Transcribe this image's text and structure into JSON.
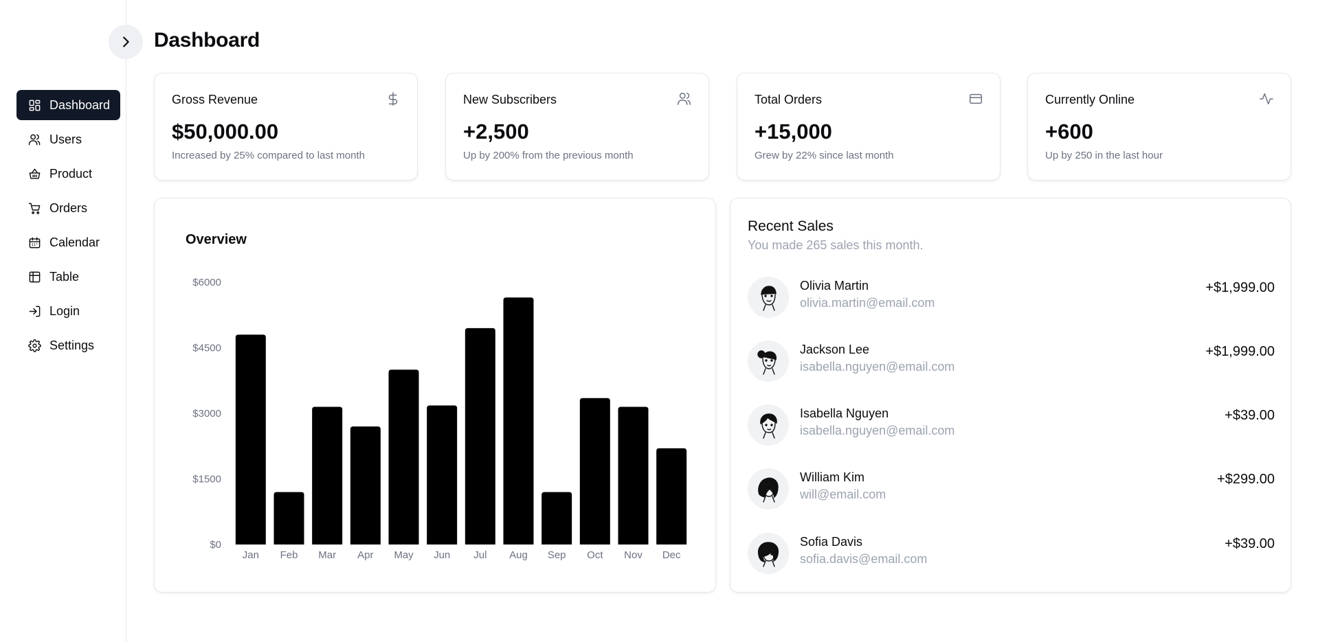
{
  "page": {
    "title": "Dashboard"
  },
  "sidebar": {
    "items": [
      {
        "label": "Dashboard",
        "icon": "dashboard-icon",
        "active": true
      },
      {
        "label": "Users",
        "icon": "users-icon"
      },
      {
        "label": "Product",
        "icon": "basket-icon"
      },
      {
        "label": "Orders",
        "icon": "cart-icon"
      },
      {
        "label": "Calendar",
        "icon": "calendar-icon"
      },
      {
        "label": "Table",
        "icon": "table-icon"
      },
      {
        "label": "Login",
        "icon": "login-icon"
      },
      {
        "label": "Settings",
        "icon": "gear-icon"
      }
    ]
  },
  "stats": [
    {
      "label": "Gross Revenue",
      "value": "$50,000.00",
      "sub": "Increased by 25% compared to last month",
      "icon": "dollar-icon"
    },
    {
      "label": "New Subscribers",
      "value": "+2,500",
      "sub": "Up by 200% from the previous month",
      "icon": "users-icon"
    },
    {
      "label": "Total Orders",
      "value": "+15,000",
      "sub": "Grew by 22% since last month",
      "icon": "credit-card-icon"
    },
    {
      "label": "Currently Online",
      "value": "+600",
      "sub": "Up by 250 in the last hour",
      "icon": "activity-icon"
    }
  ],
  "overview": {
    "title": "Overview"
  },
  "chart_data": {
    "type": "bar",
    "title": "Overview",
    "categories": [
      "Jan",
      "Feb",
      "Mar",
      "Apr",
      "May",
      "Jun",
      "Jul",
      "Aug",
      "Sep",
      "Oct",
      "Nov",
      "Dec"
    ],
    "values": [
      4800,
      1200,
      3150,
      2700,
      4000,
      3180,
      4950,
      5650,
      1200,
      3350,
      3150,
      2200
    ],
    "y_ticks": [
      "$0",
      "$1500",
      "$3000",
      "$4500",
      "$6000"
    ],
    "ylim": [
      0,
      6000
    ],
    "bar_color": "#000000",
    "grid": false
  },
  "recent_sales": {
    "title": "Recent Sales",
    "subtitle": "You made 265 sales this month.",
    "rows": [
      {
        "name": "Olivia Martin",
        "email": "olivia.martin@email.com",
        "amount": "+$1,999.00"
      },
      {
        "name": "Jackson Lee",
        "email": "isabella.nguyen@email.com",
        "amount": "+$1,999.00"
      },
      {
        "name": "Isabella Nguyen",
        "email": "isabella.nguyen@email.com",
        "amount": "+$39.00"
      },
      {
        "name": "William Kim",
        "email": "will@email.com",
        "amount": "+$299.00"
      },
      {
        "name": "Sofia Davis",
        "email": "sofia.davis@email.com",
        "amount": "+$39.00"
      }
    ]
  },
  "colors": {
    "active_nav_bg": "#111827",
    "muted_text": "#9ca3af",
    "border": "#e5e7eb"
  }
}
